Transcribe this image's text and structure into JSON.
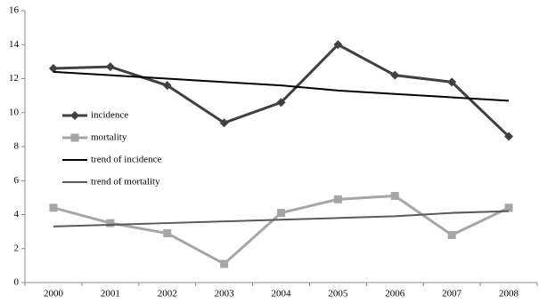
{
  "chart_data": {
    "type": "line",
    "categories": [
      "2000",
      "2001",
      "2002",
      "2003",
      "2004",
      "2005",
      "2006",
      "2007",
      "2008"
    ],
    "series": [
      {
        "name": "incidence",
        "color": "#404040",
        "marker": "diamond",
        "values": [
          12.6,
          12.7,
          11.6,
          9.4,
          10.6,
          14.0,
          12.2,
          11.8,
          8.6
        ]
      },
      {
        "name": "mortality",
        "color": "#a6a6a6",
        "marker": "square",
        "values": [
          4.4,
          3.5,
          2.9,
          1.1,
          4.1,
          4.9,
          5.1,
          2.8,
          4.4
        ]
      },
      {
        "name": "trend of incidence",
        "color": "#000000",
        "marker": "none",
        "values": [
          12.4,
          12.2,
          12.0,
          11.8,
          11.6,
          11.3,
          11.1,
          10.9,
          10.7
        ]
      },
      {
        "name": "trend of mortality",
        "color": "#595959",
        "marker": "none",
        "values": [
          3.3,
          3.4,
          3.5,
          3.6,
          3.7,
          3.8,
          3.9,
          4.1,
          4.2
        ]
      }
    ],
    "ylim": [
      0,
      16
    ],
    "yticks": [
      0,
      2,
      4,
      6,
      8,
      10,
      12,
      14,
      16
    ],
    "grid": false,
    "legend": "left"
  }
}
